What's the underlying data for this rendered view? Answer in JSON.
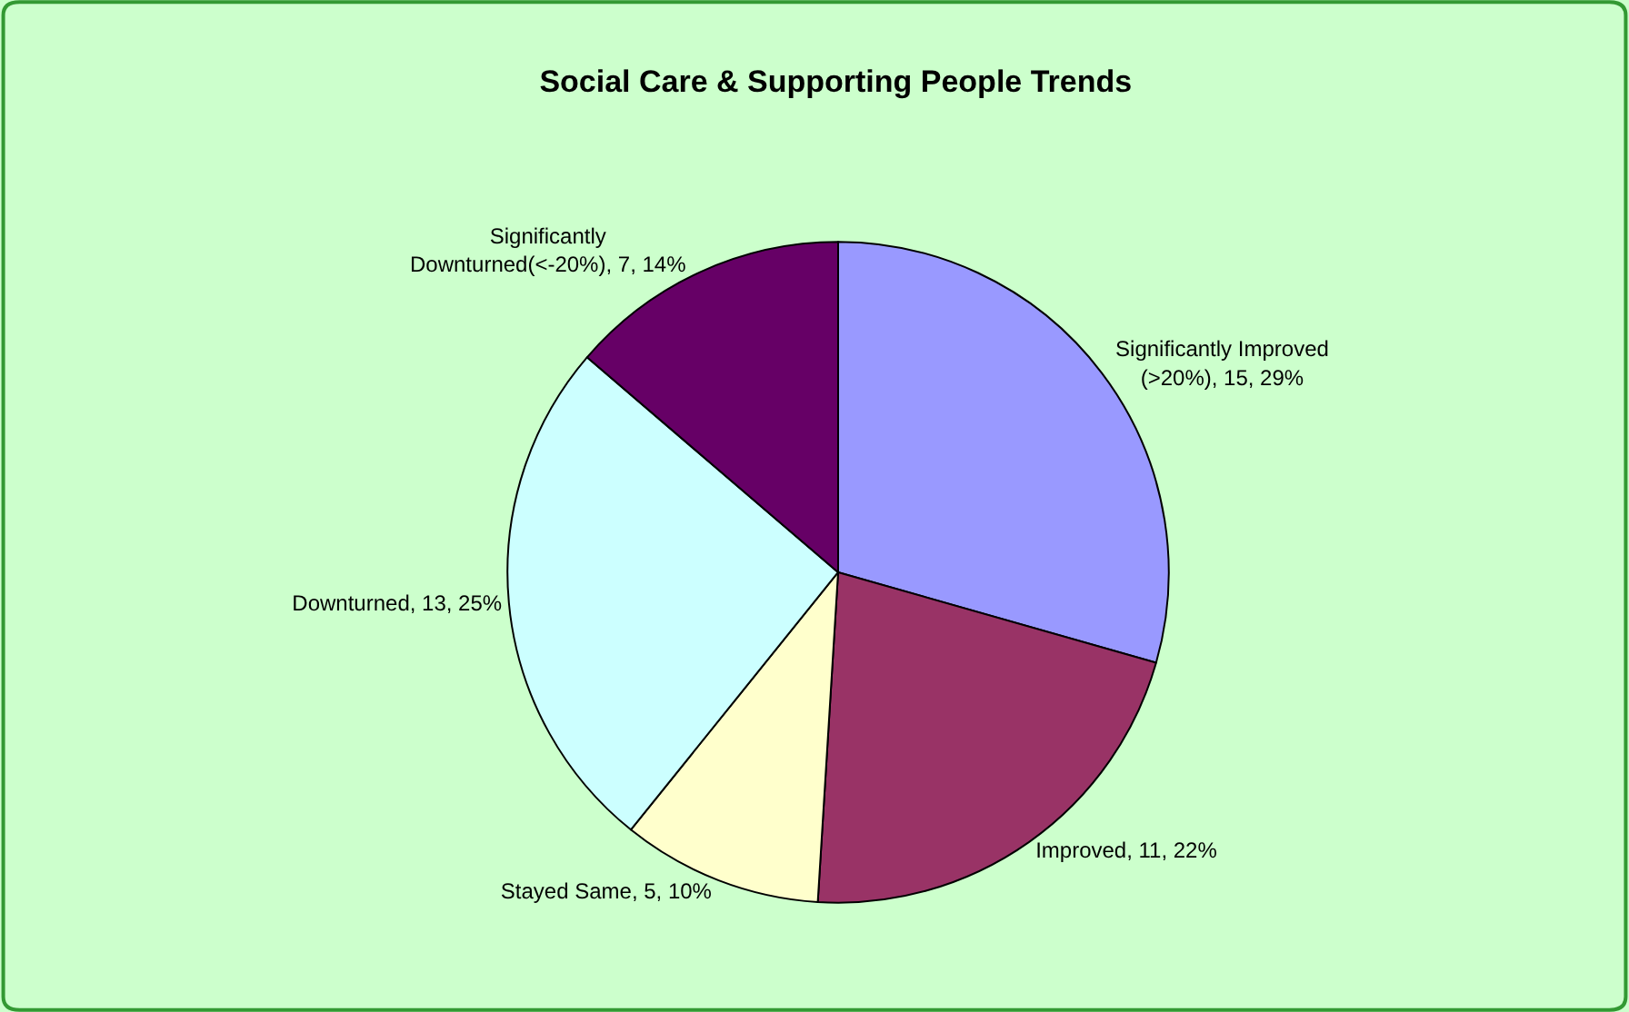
{
  "chart_data": {
    "type": "pie",
    "title": "Social Care & Supporting People Trends",
    "categories": [
      "Significantly Improved\n(>20%)",
      "Improved",
      "Stayed Same",
      "Downturned",
      "Significantly\nDownturned(<-20%)"
    ],
    "values": [
      15,
      11,
      5,
      13,
      7
    ],
    "colors": [
      "#9999ff",
      "#993366",
      "#ffffcc",
      "#ccffff",
      "#660066"
    ],
    "value_labels": [
      "15, 29%",
      "11, 22%",
      "5, 10%",
      "13, 25%",
      "7, 14%"
    ],
    "legend": false
  }
}
